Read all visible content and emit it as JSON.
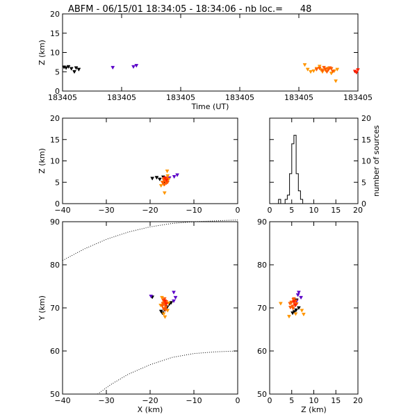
{
  "chart_data": {
    "title": "ABFM - 06/15/01 18:34:05 - 18:34:06 - nb loc.=      48",
    "colors": {
      "black": "#000000",
      "purple": "#5a00c8",
      "orange": "#ff9600",
      "red_orange": "#ff5a00",
      "red": "#ff1e00"
    },
    "panels": [
      {
        "id": "time_height",
        "type": "scatter",
        "xlabel": "Time (UT)",
        "ylabel": "Z (km)",
        "xlim": [
          0,
          1
        ],
        "ylim": [
          0,
          20
        ],
        "xticks": [
          0,
          0.2,
          0.4,
          0.6,
          0.8,
          1.0
        ],
        "xticklabels": [
          "183405",
          "183405",
          "183405",
          "183405",
          "183405",
          "183405"
        ],
        "yticks": [
          0,
          5,
          10,
          15,
          20
        ],
        "yticklabels": [
          "0",
          "5",
          "10",
          "15",
          "20"
        ],
        "series": [
          {
            "color": "black",
            "points": [
              [
                0.005,
                6.2
              ],
              [
                0.012,
                6.0
              ],
              [
                0.02,
                6.3
              ],
              [
                0.03,
                5.8
              ],
              [
                0.04,
                5.0
              ],
              [
                0.046,
                6.0
              ],
              [
                0.055,
                5.6
              ]
            ]
          },
          {
            "color": "purple",
            "points": [
              [
                0.17,
                6.1
              ],
              [
                0.24,
                6.3
              ],
              [
                0.25,
                6.6
              ]
            ]
          },
          {
            "color": "orange",
            "points": [
              [
                0.82,
                6.8
              ],
              [
                0.83,
                5.6
              ],
              [
                0.84,
                5.0
              ],
              [
                0.85,
                5.2
              ],
              [
                0.86,
                5.8
              ],
              [
                0.87,
                6.4
              ],
              [
                0.875,
                5.5
              ],
              [
                0.88,
                5.0
              ],
              [
                0.89,
                5.4
              ],
              [
                0.9,
                5.9
              ],
              [
                0.91,
                4.6
              ],
              [
                0.92,
                5.2
              ],
              [
                0.925,
                2.6
              ],
              [
                0.93,
                5.6
              ]
            ]
          },
          {
            "color": "red_orange",
            "points": [
              [
                0.86,
                5.6
              ],
              [
                0.87,
                5.9
              ],
              [
                0.88,
                5.3
              ],
              [
                0.885,
                6.1
              ],
              [
                0.89,
                5.7
              ],
              [
                0.895,
                5.0
              ],
              [
                0.9,
                5.5
              ],
              [
                0.905,
                6.0
              ],
              [
                0.91,
                5.8
              ],
              [
                0.915,
                5.1
              ]
            ]
          },
          {
            "color": "red",
            "points": [
              [
                0.99,
                5.1
              ],
              [
                0.995,
                4.8
              ],
              [
                1.0,
                5.5
              ]
            ]
          }
        ]
      },
      {
        "id": "x_height",
        "type": "scatter",
        "xlabel": "",
        "ylabel": "Z (km)",
        "xlim": [
          -40,
          0
        ],
        "ylim": [
          0,
          20
        ],
        "xticks": [
          -40,
          -30,
          -20,
          -10,
          0
        ],
        "xticklabels": [
          "−40",
          "−30",
          "−20",
          "−10",
          "0"
        ],
        "yticks": [
          0,
          5,
          10,
          15,
          20
        ],
        "yticklabels": [
          "0",
          "5",
          "10",
          "15",
          "20"
        ],
        "series": [
          {
            "color": "black",
            "points": [
              [
                -19.5,
                5.9
              ],
              [
                -18.5,
                6.1
              ],
              [
                -17.8,
                5.7
              ],
              [
                -17.0,
                6.2
              ],
              [
                -16.6,
                5.1
              ],
              [
                -16.8,
                4.6
              ]
            ]
          },
          {
            "color": "purple",
            "points": [
              [
                -15.6,
                6.0
              ],
              [
                -14.5,
                6.3
              ],
              [
                -13.8,
                6.7
              ]
            ]
          },
          {
            "color": "orange",
            "points": [
              [
                -16.1,
                7.6
              ],
              [
                -17.2,
                5.0
              ],
              [
                -16.9,
                4.5
              ],
              [
                -16.3,
                5.3
              ],
              [
                -17.5,
                4.2
              ],
              [
                -15.8,
                5.7
              ],
              [
                -16.7,
                2.5
              ],
              [
                -16.0,
                6.5
              ]
            ]
          },
          {
            "color": "red_orange",
            "points": [
              [
                -16.9,
                5.6
              ],
              [
                -16.5,
                5.2
              ],
              [
                -16.2,
                5.9
              ],
              [
                -17.1,
                4.9
              ],
              [
                -16.7,
                4.5
              ],
              [
                -16.4,
                5.4
              ],
              [
                -16.0,
                5.0
              ],
              [
                -16.8,
                5.8
              ],
              [
                -16.3,
                4.8
              ]
            ]
          },
          {
            "color": "red",
            "points": [
              [
                -16.6,
                6.0
              ],
              [
                -16.2,
                5.5
              ]
            ]
          }
        ]
      },
      {
        "id": "histogram",
        "type": "bar",
        "xlabel": "",
        "ylabel": "number of sources",
        "xlim": [
          0,
          20
        ],
        "ylim": [
          0,
          20
        ],
        "xticks": [
          0,
          5,
          10,
          15,
          20
        ],
        "xticklabels": [
          "0",
          "5",
          "10",
          "15",
          "20"
        ],
        "yticks": [
          0,
          5,
          10,
          15,
          20
        ],
        "yticklabels": [
          "0",
          "5",
          "10",
          "15",
          "20"
        ],
        "bin_edges": [
          0,
          0.5,
          1,
          1.5,
          2,
          2.5,
          3,
          3.5,
          4,
          4.5,
          5,
          5.5,
          6,
          6.5,
          7,
          7.5,
          8,
          8.5,
          9,
          9.5,
          10
        ],
        "counts": [
          0,
          0,
          0,
          0,
          1,
          0,
          0,
          1,
          2,
          7,
          14,
          16,
          7,
          3,
          1,
          0,
          0,
          0,
          0,
          0
        ]
      },
      {
        "id": "plan_view",
        "type": "scatter",
        "xlabel": "X (km)",
        "ylabel": "Y (km)",
        "xlim": [
          -40,
          0
        ],
        "ylim": [
          50,
          90
        ],
        "xticks": [
          -40,
          -30,
          -20,
          -10,
          0
        ],
        "xticklabels": [
          "−40",
          "−30",
          "−20",
          "−10",
          "0"
        ],
        "yticks": [
          50,
          60,
          70,
          80,
          90
        ],
        "yticklabels": [
          "50",
          "60",
          "70",
          "80",
          "90"
        ],
        "boundaries": [
          [
            [
              -40,
              81
            ],
            [
              -35,
              83.7
            ],
            [
              -30,
              85.9
            ],
            [
              -25,
              87.6
            ],
            [
              -20,
              88.8
            ],
            [
              -15,
              89.6
            ],
            [
              -10,
              90
            ],
            [
              -5,
              90.2
            ],
            [
              0,
              90.4
            ]
          ],
          [
            [
              -32,
              50
            ],
            [
              -29,
              52.2
            ],
            [
              -25,
              54.6
            ],
            [
              -20,
              56.8
            ],
            [
              -15,
              58.5
            ],
            [
              -10,
              59.4
            ],
            [
              -5,
              59.8
            ],
            [
              0,
              60.0
            ]
          ]
        ],
        "series": [
          {
            "color": "black",
            "points": [
              [
                -19.5,
                72.5
              ],
              [
                -17.5,
                69.2
              ],
              [
                -17.2,
                68.8
              ],
              [
                -16.8,
                69.6
              ],
              [
                -16.1,
                70.2
              ],
              [
                -15.6,
                70.9
              ],
              [
                -15.2,
                71.2
              ]
            ]
          },
          {
            "color": "purple",
            "points": [
              [
                -19.8,
                72.7
              ],
              [
                -14.6,
                73.6
              ],
              [
                -14.2,
                72.4
              ],
              [
                -14.6,
                71.6
              ]
            ]
          },
          {
            "color": "orange",
            "points": [
              [
                -16.6,
                67.9
              ],
              [
                -16.0,
                69.4
              ],
              [
                -17.3,
                72.4
              ],
              [
                -15.8,
                71.1
              ],
              [
                -16.9,
                68.6
              ],
              [
                -17.6,
                70.6
              ]
            ]
          },
          {
            "color": "red_orange",
            "points": [
              [
                -17.0,
                71.8
              ],
              [
                -16.8,
                71.2
              ],
              [
                -16.6,
                70.7
              ],
              [
                -17.2,
                70.4
              ],
              [
                -16.4,
                70.1
              ],
              [
                -16.9,
                69.8
              ],
              [
                -16.3,
                71.4
              ],
              [
                -17.1,
                71.0
              ],
              [
                -16.7,
                72.1
              ],
              [
                -16.5,
                69.5
              ]
            ]
          },
          {
            "color": "red",
            "points": [
              [
                -16.6,
                71.6
              ],
              [
                -16.3,
                70.9
              ]
            ]
          }
        ]
      },
      {
        "id": "z_y",
        "type": "scatter",
        "xlabel": "Z (km)",
        "ylabel": "",
        "xlim": [
          0,
          20
        ],
        "ylim": [
          50,
          90
        ],
        "xticks": [
          0,
          5,
          10,
          15,
          20
        ],
        "xticklabels": [
          "0",
          "5",
          "10",
          "15",
          "20"
        ],
        "yticks": [
          50,
          60,
          70,
          80,
          90
        ],
        "yticklabels": [
          "50",
          "60",
          "70",
          "80",
          "90"
        ],
        "series": [
          {
            "color": "black",
            "points": [
              [
                6.1,
                71.8
              ],
              [
                5.6,
                69.1
              ],
              [
                5.2,
                68.8
              ],
              [
                6.0,
                69.5
              ],
              [
                6.6,
                70.0
              ],
              [
                5.8,
                70.6
              ]
            ]
          },
          {
            "color": "purple",
            "points": [
              [
                6.6,
                73.6
              ],
              [
                7.1,
                72.4
              ],
              [
                6.1,
                71.6
              ],
              [
                6.4,
                73.0
              ]
            ]
          },
          {
            "color": "orange",
            "points": [
              [
                2.5,
                71.0
              ],
              [
                7.7,
                68.5
              ],
              [
                4.4,
                68.0
              ],
              [
                7.3,
                69.4
              ],
              [
                4.9,
                71.3
              ],
              [
                5.9,
                68.6
              ]
            ]
          },
          {
            "color": "red_orange",
            "points": [
              [
                5.4,
                71.9
              ],
              [
                5.0,
                71.3
              ],
              [
                5.7,
                70.8
              ],
              [
                5.2,
                70.4
              ],
              [
                4.7,
                70.1
              ],
              [
                5.9,
                71.6
              ],
              [
                6.1,
                70.9
              ],
              [
                5.5,
                72.1
              ],
              [
                4.6,
                71.0
              ],
              [
                5.3,
                69.9
              ]
            ]
          },
          {
            "color": "red",
            "points": [
              [
                5.5,
                71.4
              ],
              [
                5.8,
                70.6
              ]
            ]
          }
        ]
      }
    ]
  }
}
